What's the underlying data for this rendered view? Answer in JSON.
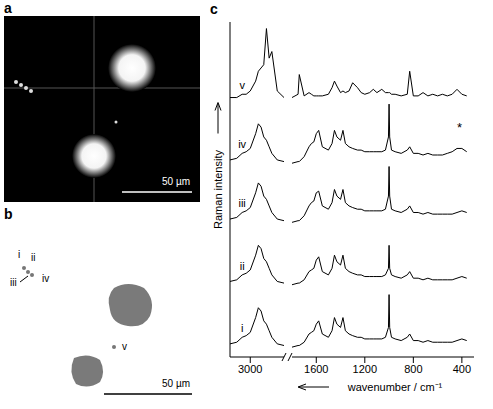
{
  "panels": {
    "a": {
      "label": "a",
      "scale_bar": "50 µm"
    },
    "b": {
      "label": "b",
      "scale_bar": "50 µm",
      "spot_labels": [
        "i",
        "ii",
        "iii",
        "iv",
        "v"
      ]
    },
    "c": {
      "label": "c"
    }
  },
  "chart_data": [
    {
      "type": "line",
      "ylabel": "Raman intensity",
      "x": [
        3150,
        3100,
        3060,
        3030,
        3000,
        2960,
        2940,
        2920,
        2900,
        2880,
        2860,
        2840,
        2800,
        2750
      ],
      "xlim": [
        3150,
        2750
      ],
      "xticks": [
        3000
      ],
      "ylim": [
        0,
        102
      ],
      "tick_labels": "x",
      "series": [
        {
          "name": "i",
          "color": "#000000",
          "values": [
            4,
            4.5,
            6,
            6.5,
            7.5,
            12,
            15,
            14,
            11,
            10,
            8,
            6,
            4,
            3.5
          ]
        },
        {
          "name": "ii",
          "color": "#000000",
          "values": [
            23,
            23.5,
            25,
            25.5,
            26.5,
            31,
            34,
            33,
            30,
            29,
            27,
            25,
            23,
            22.5
          ]
        },
        {
          "name": "iii",
          "color": "#000000",
          "values": [
            42,
            42.5,
            44,
            44.5,
            45.5,
            50,
            53,
            52,
            49,
            48,
            46,
            44,
            42,
            41.5
          ]
        },
        {
          "name": "iv",
          "color": "#000000",
          "values": [
            60,
            60.5,
            62,
            62.5,
            63.5,
            68,
            71,
            70,
            67,
            66,
            64,
            62,
            60,
            59.5
          ]
        },
        {
          "name": "v",
          "color": "#000000",
          "values": [
            79,
            79,
            80,
            80,
            81,
            84,
            87,
            88,
            89,
            100,
            91,
            93,
            81,
            79
          ]
        }
      ]
    },
    {
      "type": "line",
      "xlabel": "wavenumber / cm⁻¹",
      "x": [
        1800,
        1750,
        1740,
        1700,
        1660,
        1640,
        1620,
        1600,
        1580,
        1550,
        1500,
        1470,
        1450,
        1430,
        1400,
        1380,
        1360,
        1330,
        1300,
        1260,
        1230,
        1200,
        1160,
        1130,
        1100,
        1060,
        1030,
        1005,
        1000,
        995,
        980,
        950,
        900,
        850,
        830,
        800,
        760,
        720,
        680,
        640,
        600,
        560,
        520,
        480,
        440,
        400,
        360
      ],
      "xlim": [
        1800,
        300
      ],
      "xticks": [
        1600,
        1200,
        800,
        400
      ],
      "ylim": [
        0,
        102
      ],
      "tick_labels": "x",
      "series": [
        {
          "name": "i",
          "color": "#000000",
          "values": [
            3,
            3.5,
            3.5,
            4.5,
            7,
            7.5,
            8,
            10,
            11,
            7,
            6,
            8,
            12,
            10,
            9,
            12,
            8,
            7,
            6.5,
            6,
            6,
            5.5,
            5.5,
            5.5,
            5.5,
            5.5,
            6,
            9,
            19,
            9,
            6,
            5.5,
            5,
            6,
            7,
            5,
            5,
            4.5,
            5,
            4.5,
            4.5,
            4.5,
            4.5,
            4.5,
            5,
            5.5,
            5
          ]
        },
        {
          "name": "ii",
          "color": "#000000",
          "values": [
            22,
            22.5,
            22.5,
            23.5,
            26,
            26.5,
            27,
            29.5,
            30.5,
            26,
            25,
            27,
            31,
            29,
            28,
            31,
            27,
            26,
            25.5,
            25,
            25,
            24.5,
            24.5,
            24.5,
            24.5,
            24.5,
            25,
            27,
            34,
            27,
            25,
            24.5,
            24,
            25,
            26,
            24,
            24,
            23.5,
            24,
            23.5,
            23.5,
            23.5,
            23.5,
            23.5,
            24,
            24.5,
            24
          ]
        },
        {
          "name": "iii",
          "color": "#000000",
          "values": [
            41,
            41.5,
            41.5,
            43,
            46,
            47,
            47.5,
            50,
            50.5,
            46,
            45,
            47,
            51,
            49,
            48,
            51,
            47,
            46,
            45.5,
            45,
            45,
            44.5,
            44.5,
            44.5,
            44.5,
            44.5,
            45,
            49,
            58,
            49,
            45,
            44.5,
            44,
            45,
            46,
            44,
            44,
            43.5,
            44,
            43.5,
            43.5,
            43.5,
            43.5,
            43.5,
            44,
            44.5,
            44
          ]
        },
        {
          "name": "iv",
          "color": "#000000",
          "values": [
            59,
            59.5,
            59.5,
            61,
            64,
            65,
            65.5,
            68,
            69,
            64,
            63,
            65,
            69,
            67,
            66,
            69,
            65,
            64,
            63.5,
            63,
            63,
            62.5,
            62.5,
            62.5,
            62.5,
            62.5,
            63,
            67,
            77,
            67,
            63,
            62.5,
            62,
            63,
            64,
            62,
            62,
            61.5,
            62,
            61.5,
            61.5,
            61.5,
            62,
            62.5,
            63.5,
            63.5,
            62.5
          ]
        },
        {
          "name": "v",
          "color": "#000000",
          "values": [
            79,
            80,
            86,
            79.5,
            80.5,
            80,
            79.5,
            79.5,
            79.5,
            79.5,
            80,
            82,
            84,
            82.5,
            80.5,
            81,
            80.5,
            81,
            83.5,
            82,
            80.5,
            80,
            80.5,
            81.5,
            80.5,
            81.5,
            80.5,
            80.5,
            80.5,
            80.5,
            80,
            80,
            79.5,
            80,
            87,
            79.5,
            79.5,
            80.5,
            79.5,
            80,
            79.5,
            80,
            79.5,
            80,
            81.5,
            80,
            79.5
          ]
        }
      ],
      "annotations": [
        {
          "text": "*",
          "x": 420,
          "y": 70
        }
      ]
    }
  ]
}
